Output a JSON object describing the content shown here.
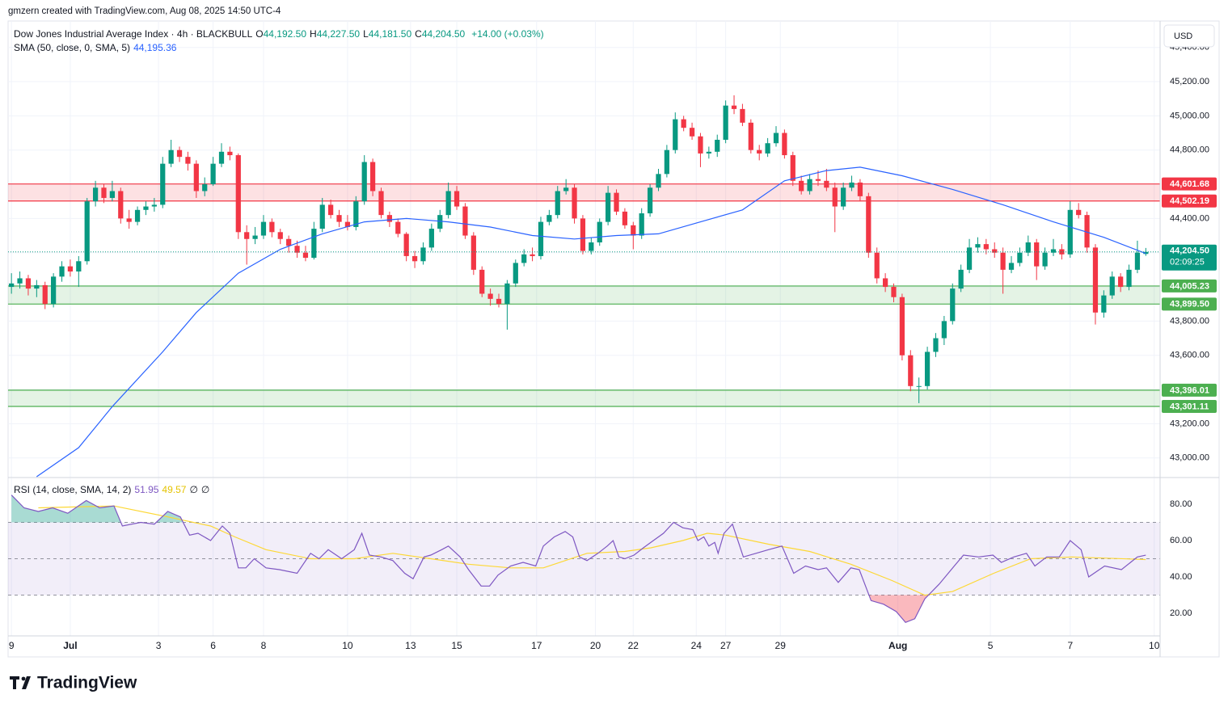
{
  "chart_data": {
    "type": "candlestick",
    "attribution": "gmzern created with TradingView.com, Aug 08, 2025 14:50 UTC-4",
    "legend": {
      "symbol": "Dow Jones Industrial Average Index · 4h · BLACKBULL",
      "ohlc": [
        {
          "key": "O",
          "value": "44,192.50"
        },
        {
          "key": "H",
          "value": "44,227.50"
        },
        {
          "key": "L",
          "value": "44,181.50"
        },
        {
          "key": "C",
          "value": "44,204.50"
        }
      ],
      "change": "+14.00 (+0.03%)"
    },
    "currency": "USD",
    "brand": "TradingView",
    "up_color": "#089981",
    "down_color": "#f23645",
    "xlim": [
      -0.4,
      136.7
    ],
    "xticks": [
      {
        "value": 0,
        "label": "9"
      },
      {
        "value": 7,
        "label": "Jul"
      },
      {
        "value": 17.5,
        "label": "3"
      },
      {
        "value": 24,
        "label": "6"
      },
      {
        "value": 30,
        "label": "8"
      },
      {
        "value": 40,
        "label": "10"
      },
      {
        "value": 47.5,
        "label": "13"
      },
      {
        "value": 53,
        "label": "15"
      },
      {
        "value": 62.5,
        "label": "17"
      },
      {
        "value": 69.5,
        "label": "20"
      },
      {
        "value": 74,
        "label": "22"
      },
      {
        "value": 81.5,
        "label": "24"
      },
      {
        "value": 85,
        "label": "27"
      },
      {
        "value": 91.5,
        "label": "29"
      },
      {
        "value": 105.5,
        "label": "Aug"
      },
      {
        "value": 116.5,
        "label": "5"
      },
      {
        "value": 126,
        "label": "7"
      },
      {
        "value": 136,
        "label": "10"
      }
    ],
    "ylim": [
      42890,
      45545
    ],
    "yticks": [
      {
        "value": 43000,
        "label": "43,000.00"
      },
      {
        "value": 43200,
        "label": "43,200.00"
      },
      {
        "value": 43400,
        "label": "43,400.00"
      },
      {
        "value": 43600,
        "label": "43,600.00"
      },
      {
        "value": 43800,
        "label": "43,800.00"
      },
      {
        "value": 44000,
        "label": "44,000.00"
      },
      {
        "value": 44200,
        "label": "44,200.00"
      },
      {
        "value": 44400,
        "label": "44,400.00"
      },
      {
        "value": 44600,
        "label": "44,600.00"
      },
      {
        "value": 44800,
        "label": "44,800.00"
      },
      {
        "value": 45000,
        "label": "45,000.00"
      },
      {
        "value": 45200,
        "label": "45,200.00"
      },
      {
        "value": 45400,
        "label": "45,400.00"
      }
    ],
    "grid": true,
    "candles": [
      [
        44000,
        44080,
        43960,
        44020
      ],
      [
        44020,
        44090,
        43990,
        44050
      ],
      [
        44050,
        44070,
        43950,
        43990
      ],
      [
        43990,
        44040,
        43940,
        44010
      ],
      [
        44010,
        44030,
        43870,
        43900
      ],
      [
        43900,
        44080,
        43880,
        44060
      ],
      [
        44060,
        44150,
        44030,
        44120
      ],
      [
        44120,
        44160,
        44060,
        44090
      ],
      [
        44090,
        44180,
        44000,
        44150
      ],
      [
        44150,
        44520,
        44130,
        44500
      ],
      [
        44500,
        44620,
        44470,
        44580
      ],
      [
        44580,
        44600,
        44490,
        44520
      ],
      [
        44520,
        44620,
        44500,
        44560
      ],
      [
        44560,
        44580,
        44370,
        44400
      ],
      [
        44400,
        44450,
        44340,
        44380
      ],
      [
        44380,
        44470,
        44360,
        44450
      ],
      [
        44450,
        44500,
        44420,
        44470
      ],
      [
        44470,
        44520,
        44440,
        44480
      ],
      [
        44480,
        44760,
        44460,
        44720
      ],
      [
        44720,
        44860,
        44700,
        44800
      ],
      [
        44800,
        44820,
        44730,
        44760
      ],
      [
        44760,
        44790,
        44680,
        44720
      ],
      [
        44720,
        44740,
        44520,
        44560
      ],
      [
        44560,
        44640,
        44530,
        44600
      ],
      [
        44600,
        44760,
        44590,
        44720
      ],
      [
        44720,
        44840,
        44700,
        44790
      ],
      [
        44790,
        44820,
        44740,
        44770
      ],
      [
        44770,
        44780,
        44280,
        44320
      ],
      [
        44320,
        44360,
        44130,
        44280
      ],
      [
        44280,
        44350,
        44250,
        44300
      ],
      [
        44300,
        44420,
        44280,
        44380
      ],
      [
        44380,
        44400,
        44290,
        44320
      ],
      [
        44320,
        44340,
        44250,
        44280
      ],
      [
        44280,
        44300,
        44200,
        44240
      ],
      [
        44240,
        44270,
        44170,
        44200
      ],
      [
        44200,
        44240,
        44150,
        44170
      ],
      [
        44170,
        44380,
        44160,
        44340
      ],
      [
        44340,
        44520,
        44320,
        44480
      ],
      [
        44480,
        44510,
        44400,
        44420
      ],
      [
        44420,
        44450,
        44350,
        44380
      ],
      [
        44380,
        44420,
        44330,
        44350
      ],
      [
        44350,
        44530,
        44330,
        44500
      ],
      [
        44500,
        44770,
        44480,
        44730
      ],
      [
        44730,
        44750,
        44530,
        44560
      ],
      [
        44560,
        44580,
        44400,
        44420
      ],
      [
        44420,
        44440,
        44350,
        44380
      ],
      [
        44380,
        44400,
        44290,
        44310
      ],
      [
        44310,
        44320,
        44150,
        44180
      ],
      [
        44180,
        44210,
        44110,
        44150
      ],
      [
        44150,
        44260,
        44130,
        44230
      ],
      [
        44230,
        44370,
        44210,
        44340
      ],
      [
        44340,
        44450,
        44320,
        44420
      ],
      [
        44420,
        44610,
        44400,
        44560
      ],
      [
        44560,
        44590,
        44450,
        44470
      ],
      [
        44470,
        44490,
        44280,
        44300
      ],
      [
        44300,
        44320,
        44070,
        44100
      ],
      [
        44100,
        44120,
        43940,
        43960
      ],
      [
        43960,
        43990,
        43890,
        43930
      ],
      [
        43930,
        43960,
        43880,
        43900
      ],
      [
        43900,
        44040,
        43750,
        44020
      ],
      [
        44020,
        44160,
        44000,
        44140
      ],
      [
        44140,
        44220,
        44120,
        44190
      ],
      [
        44190,
        44230,
        44150,
        44180
      ],
      [
        44180,
        44410,
        44160,
        44380
      ],
      [
        44380,
        44450,
        44360,
        44420
      ],
      [
        44420,
        44590,
        44400,
        44560
      ],
      [
        44560,
        44630,
        44540,
        44580
      ],
      [
        44580,
        44600,
        44370,
        44400
      ],
      [
        44400,
        44420,
        44190,
        44210
      ],
      [
        44210,
        44290,
        44190,
        44260
      ],
      [
        44260,
        44400,
        44240,
        44380
      ],
      [
        44380,
        44590,
        44360,
        44550
      ],
      [
        44550,
        44570,
        44420,
        44440
      ],
      [
        44440,
        44460,
        44340,
        44360
      ],
      [
        44360,
        44380,
        44220,
        44300
      ],
      [
        44300,
        44460,
        44280,
        44430
      ],
      [
        44430,
        44600,
        44410,
        44580
      ],
      [
        44580,
        44690,
        44560,
        44660
      ],
      [
        44660,
        44830,
        44640,
        44800
      ],
      [
        44800,
        45020,
        44780,
        44980
      ],
      [
        44980,
        45000,
        44910,
        44930
      ],
      [
        44930,
        44960,
        44860,
        44880
      ],
      [
        44880,
        44900,
        44700,
        44780
      ],
      [
        44780,
        44820,
        44750,
        44790
      ],
      [
        44790,
        44890,
        44760,
        44860
      ],
      [
        44860,
        45090,
        44840,
        45060
      ],
      [
        45060,
        45120,
        45010,
        45040
      ],
      [
        45040,
        45070,
        44940,
        44960
      ],
      [
        44960,
        44980,
        44780,
        44800
      ],
      [
        44800,
        44830,
        44740,
        44780
      ],
      [
        44780,
        44870,
        44760,
        44840
      ],
      [
        44840,
        44940,
        44820,
        44900
      ],
      [
        44900,
        44920,
        44750,
        44770
      ],
      [
        44770,
        44790,
        44590,
        44620
      ],
      [
        44620,
        44650,
        44540,
        44560
      ],
      [
        44560,
        44660,
        44540,
        44630
      ],
      [
        44630,
        44680,
        44590,
        44620
      ],
      [
        44620,
        44690,
        44560,
        44580
      ],
      [
        44580,
        44610,
        44320,
        44470
      ],
      [
        44470,
        44610,
        44450,
        44580
      ],
      [
        44580,
        44650,
        44560,
        44610
      ],
      [
        44610,
        44630,
        44500,
        44530
      ],
      [
        44530,
        44550,
        44170,
        44200
      ],
      [
        44200,
        44230,
        44020,
        44050
      ],
      [
        44050,
        44080,
        43970,
        44000
      ],
      [
        44000,
        44020,
        43910,
        43940
      ],
      [
        43940,
        43960,
        43570,
        43600
      ],
      [
        43600,
        43630,
        43390,
        43420
      ],
      [
        43420,
        43470,
        43320,
        43420
      ],
      [
        43420,
        43650,
        43400,
        43620
      ],
      [
        43620,
        43730,
        43590,
        43700
      ],
      [
        43700,
        43830,
        43660,
        43800
      ],
      [
        43800,
        44020,
        43780,
        43990
      ],
      [
        43990,
        44130,
        43970,
        44100
      ],
      [
        44100,
        44280,
        44080,
        44230
      ],
      [
        44230,
        44290,
        44200,
        44250
      ],
      [
        44250,
        44280,
        44190,
        44220
      ],
      [
        44220,
        44260,
        44170,
        44200
      ],
      [
        44200,
        44230,
        43960,
        44100
      ],
      [
        44100,
        44180,
        44080,
        44140
      ],
      [
        44140,
        44230,
        44120,
        44200
      ],
      [
        44200,
        44300,
        44180,
        44260
      ],
      [
        44260,
        44280,
        44040,
        44120
      ],
      [
        44120,
        44230,
        44100,
        44200
      ],
      [
        44200,
        44280,
        44180,
        44220
      ],
      [
        44220,
        44250,
        44160,
        44190
      ],
      [
        44190,
        44500,
        44170,
        44450
      ],
      [
        44450,
        44490,
        44400,
        44420
      ],
      [
        44420,
        44440,
        44200,
        44230
      ],
      [
        44230,
        44250,
        43780,
        43850
      ],
      [
        43850,
        43980,
        43820,
        43950
      ],
      [
        43950,
        44090,
        43930,
        44060
      ],
      [
        44060,
        44080,
        43970,
        44000
      ],
      [
        44000,
        44130,
        43980,
        44100
      ],
      [
        44100,
        44270,
        44080,
        44200
      ],
      [
        44192.5,
        44227.5,
        44181.5,
        44204.5
      ]
    ],
    "sma": {
      "name": "SMA (50, close, 0, SMA, 5)",
      "color": "#2962ff",
      "value_label": "44,195.36",
      "x": [
        3,
        8,
        12,
        18,
        22,
        27,
        32,
        37,
        42,
        47,
        52,
        57,
        62,
        67,
        72,
        77,
        82,
        87,
        92,
        97,
        101,
        106,
        112,
        118,
        124,
        130,
        135
      ],
      "values": [
        42890,
        43060,
        43300,
        43620,
        43850,
        44080,
        44220,
        44310,
        44380,
        44400,
        44380,
        44350,
        44300,
        44280,
        44300,
        44310,
        44380,
        44450,
        44620,
        44680,
        44700,
        44650,
        44570,
        44480,
        44380,
        44290,
        44195.36
      ]
    },
    "zones": [
      {
        "color": "#f23645",
        "top": {
          "value": 44601.68,
          "label": "44,601.68"
        },
        "bottom": {
          "value": 44502.19,
          "label": "44,502.19"
        }
      },
      {
        "color": "#4caf50",
        "top": {
          "value": 44005.23,
          "label": "44,005.23"
        },
        "bottom": {
          "value": 43899.5,
          "label": "43,899.50"
        }
      },
      {
        "color": "#4caf50",
        "top": {
          "value": 43396.01,
          "label": "43,396.01"
        },
        "bottom": {
          "value": 43301.11,
          "label": "43,301.11"
        }
      }
    ],
    "last": {
      "value": 44204.5,
      "label": "44,204.50",
      "countdown": "02:09:25",
      "color": "#089981"
    },
    "rsi": {
      "name": "RSI (14, close, SMA, 14, 2)",
      "color": "#7e57c2",
      "extras": [
        "∅",
        "∅"
      ],
      "ylim": [
        7.6,
        94.2
      ],
      "yticks": [
        {
          "value": 20,
          "label": "20.00"
        },
        {
          "value": 40,
          "label": "40.00"
        },
        {
          "value": 60,
          "label": "60.00"
        },
        {
          "value": 80,
          "label": "80.00"
        }
      ],
      "bands": [
        30,
        50,
        70
      ],
      "x": [
        0,
        1.5,
        3.2,
        4.9,
        6.7,
        8.9,
        10.5,
        12.2,
        13.2,
        15.4,
        17,
        18.6,
        20.1,
        21.2,
        22.2,
        23.7,
        25.1,
        26,
        27,
        27.9,
        28.9,
        30.3,
        31.9,
        34,
        35.6,
        36.6,
        37.7,
        39.3,
        40.8,
        41.7,
        42.6,
        44,
        45.4,
        46.8,
        47.8,
        49.1,
        49.9,
        51.2,
        52,
        53.4,
        54.4,
        55.9,
        56.9,
        57.9,
        59.4,
        60.9,
        62.4,
        63.3,
        64.6,
        65.9,
        66.8,
        67.6,
        68.5,
        69.8,
        70.9,
        71.6,
        72.3,
        73,
        74.1,
        75.2,
        76.4,
        77.6,
        78.8,
        79.9,
        81.1,
        81.7,
        82.4,
        83,
        83.7,
        84.1,
        84.8,
        85.8,
        87.1,
        88.6,
        90.1,
        91.7,
        93.1,
        94.5,
        96,
        97,
        98.4,
        99.9,
        100.9,
        102.3,
        103.8,
        105.3,
        106.4,
        107.5,
        108.7,
        110.4,
        112.2,
        113.3,
        115.1,
        116.8,
        117.8,
        119.3,
        120.8,
        121.8,
        123.2,
        124.7,
        126,
        127.3,
        128.2,
        130.1,
        132.1,
        134,
        135
      ],
      "values": [
        85,
        78,
        76,
        78,
        75,
        82,
        78,
        79,
        68,
        70,
        69,
        76,
        73,
        63,
        64,
        60,
        68,
        64,
        45,
        45,
        50,
        45,
        44,
        42,
        53,
        50,
        55,
        50,
        55,
        64,
        52,
        51,
        49,
        42,
        39,
        51,
        52,
        55,
        57,
        51,
        44,
        35,
        35,
        41,
        46,
        48,
        46,
        57,
        62,
        65,
        62,
        51,
        49,
        53,
        57,
        60,
        51,
        50,
        52,
        56,
        60,
        64,
        70,
        67,
        66,
        60,
        62,
        57,
        59,
        53,
        64,
        69,
        51,
        53,
        55,
        57,
        42,
        46,
        44,
        45,
        37,
        45,
        44,
        27,
        25,
        21,
        15,
        17,
        28,
        36,
        46,
        52,
        51,
        52,
        48,
        51,
        53,
        46,
        51,
        51,
        60,
        55,
        40,
        46,
        44,
        51,
        51.95
      ],
      "ma": {
        "color": "#fdd835",
        "x": [
          3.2,
          12.2,
          18.6,
          23.7,
          26.6,
          30.3,
          35.6,
          40.8,
          45.4,
          49.9,
          54.4,
          59.4,
          63.3,
          68.5,
          73,
          76.1,
          79.9,
          82.8,
          85,
          90.1,
          95,
          99.9,
          104.8,
          108.7,
          112,
          116.9,
          121.3,
          126.2,
          135
        ],
        "values": [
          78,
          79,
          73,
          68,
          62,
          55,
          50,
          50,
          53,
          50,
          47,
          45,
          45,
          53,
          54,
          56,
          60,
          64,
          63,
          58,
          54,
          47,
          38,
          30,
          32,
          42,
          50,
          51,
          49.57
        ]
      }
    }
  }
}
